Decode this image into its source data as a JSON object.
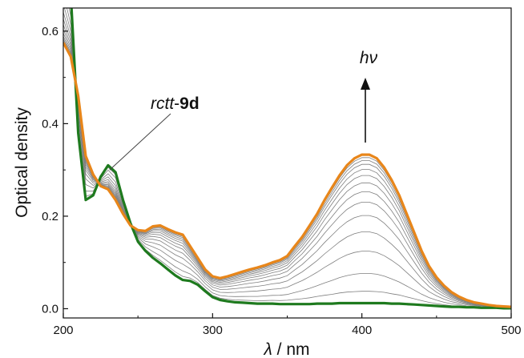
{
  "chart_data": {
    "type": "line",
    "title": "",
    "xlabel_symbol": "λ",
    "xlabel_unit": " / nm",
    "ylabel": "Optical density",
    "xlim": [
      200,
      500
    ],
    "ylim": [
      -0.02,
      0.65
    ],
    "x_ticks": [
      200,
      300,
      400,
      500
    ],
    "x_tick_labels": [
      "200",
      "300",
      "400",
      "500"
    ],
    "y_ticks": [
      0.0,
      0.2,
      0.4,
      0.6
    ],
    "y_tick_labels": [
      "0.0",
      "0.2",
      "0.4",
      "0.6"
    ],
    "grid": false,
    "colors": {
      "initial": "#1e7a1e",
      "final": "#e8861a",
      "intermediate": "#7f7f7f",
      "axis": "#111111"
    },
    "x": [
      200,
      205,
      210,
      215,
      220,
      225,
      230,
      235,
      240,
      245,
      250,
      255,
      260,
      265,
      270,
      275,
      280,
      285,
      290,
      295,
      300,
      305,
      310,
      315,
      320,
      325,
      330,
      335,
      340,
      345,
      350,
      355,
      360,
      365,
      370,
      375,
      380,
      385,
      390,
      395,
      400,
      405,
      410,
      415,
      420,
      425,
      430,
      435,
      440,
      445,
      450,
      455,
      460,
      465,
      470,
      475,
      480,
      485,
      490,
      495,
      500
    ],
    "series": [
      {
        "role": "initial",
        "values": [
          0.78,
          0.68,
          0.38,
          0.235,
          0.245,
          0.285,
          0.31,
          0.295,
          0.235,
          0.185,
          0.145,
          0.125,
          0.11,
          0.098,
          0.085,
          0.072,
          0.062,
          0.06,
          0.052,
          0.038,
          0.025,
          0.019,
          0.016,
          0.014,
          0.013,
          0.012,
          0.011,
          0.011,
          0.011,
          0.01,
          0.01,
          0.01,
          0.01,
          0.01,
          0.011,
          0.011,
          0.011,
          0.012,
          0.012,
          0.012,
          0.012,
          0.012,
          0.012,
          0.012,
          0.011,
          0.011,
          0.01,
          0.009,
          0.008,
          0.007,
          0.006,
          0.005,
          0.004,
          0.004,
          0.003,
          0.003,
          0.002,
          0.002,
          0.002,
          0.001,
          0.001
        ]
      },
      {
        "role": "final",
        "values": [
          0.575,
          0.545,
          0.46,
          0.33,
          0.29,
          0.265,
          0.258,
          0.235,
          0.205,
          0.18,
          0.17,
          0.168,
          0.178,
          0.18,
          0.172,
          0.165,
          0.16,
          0.135,
          0.11,
          0.085,
          0.07,
          0.066,
          0.07,
          0.075,
          0.08,
          0.085,
          0.089,
          0.094,
          0.1,
          0.105,
          0.114,
          0.135,
          0.155,
          0.18,
          0.205,
          0.235,
          0.262,
          0.288,
          0.31,
          0.325,
          0.333,
          0.333,
          0.325,
          0.305,
          0.278,
          0.245,
          0.205,
          0.165,
          0.125,
          0.092,
          0.068,
          0.05,
          0.036,
          0.026,
          0.019,
          0.014,
          0.011,
          0.008,
          0.006,
          0.005,
          0.004
        ]
      }
    ],
    "intermediate_fractions": [
      0.08,
      0.2,
      0.35,
      0.48,
      0.59,
      0.68,
      0.75,
      0.81,
      0.86,
      0.9,
      0.935,
      0.96,
      0.98
    ],
    "annotations": [
      {
        "id": "compound-label",
        "prefix": "rctt",
        "suffix": "-",
        "bold": "9d",
        "points_to_x": 231,
        "points_to_y": 0.3
      },
      {
        "id": "irradiation-label",
        "symbol": "hν",
        "arrow": "up"
      }
    ]
  }
}
